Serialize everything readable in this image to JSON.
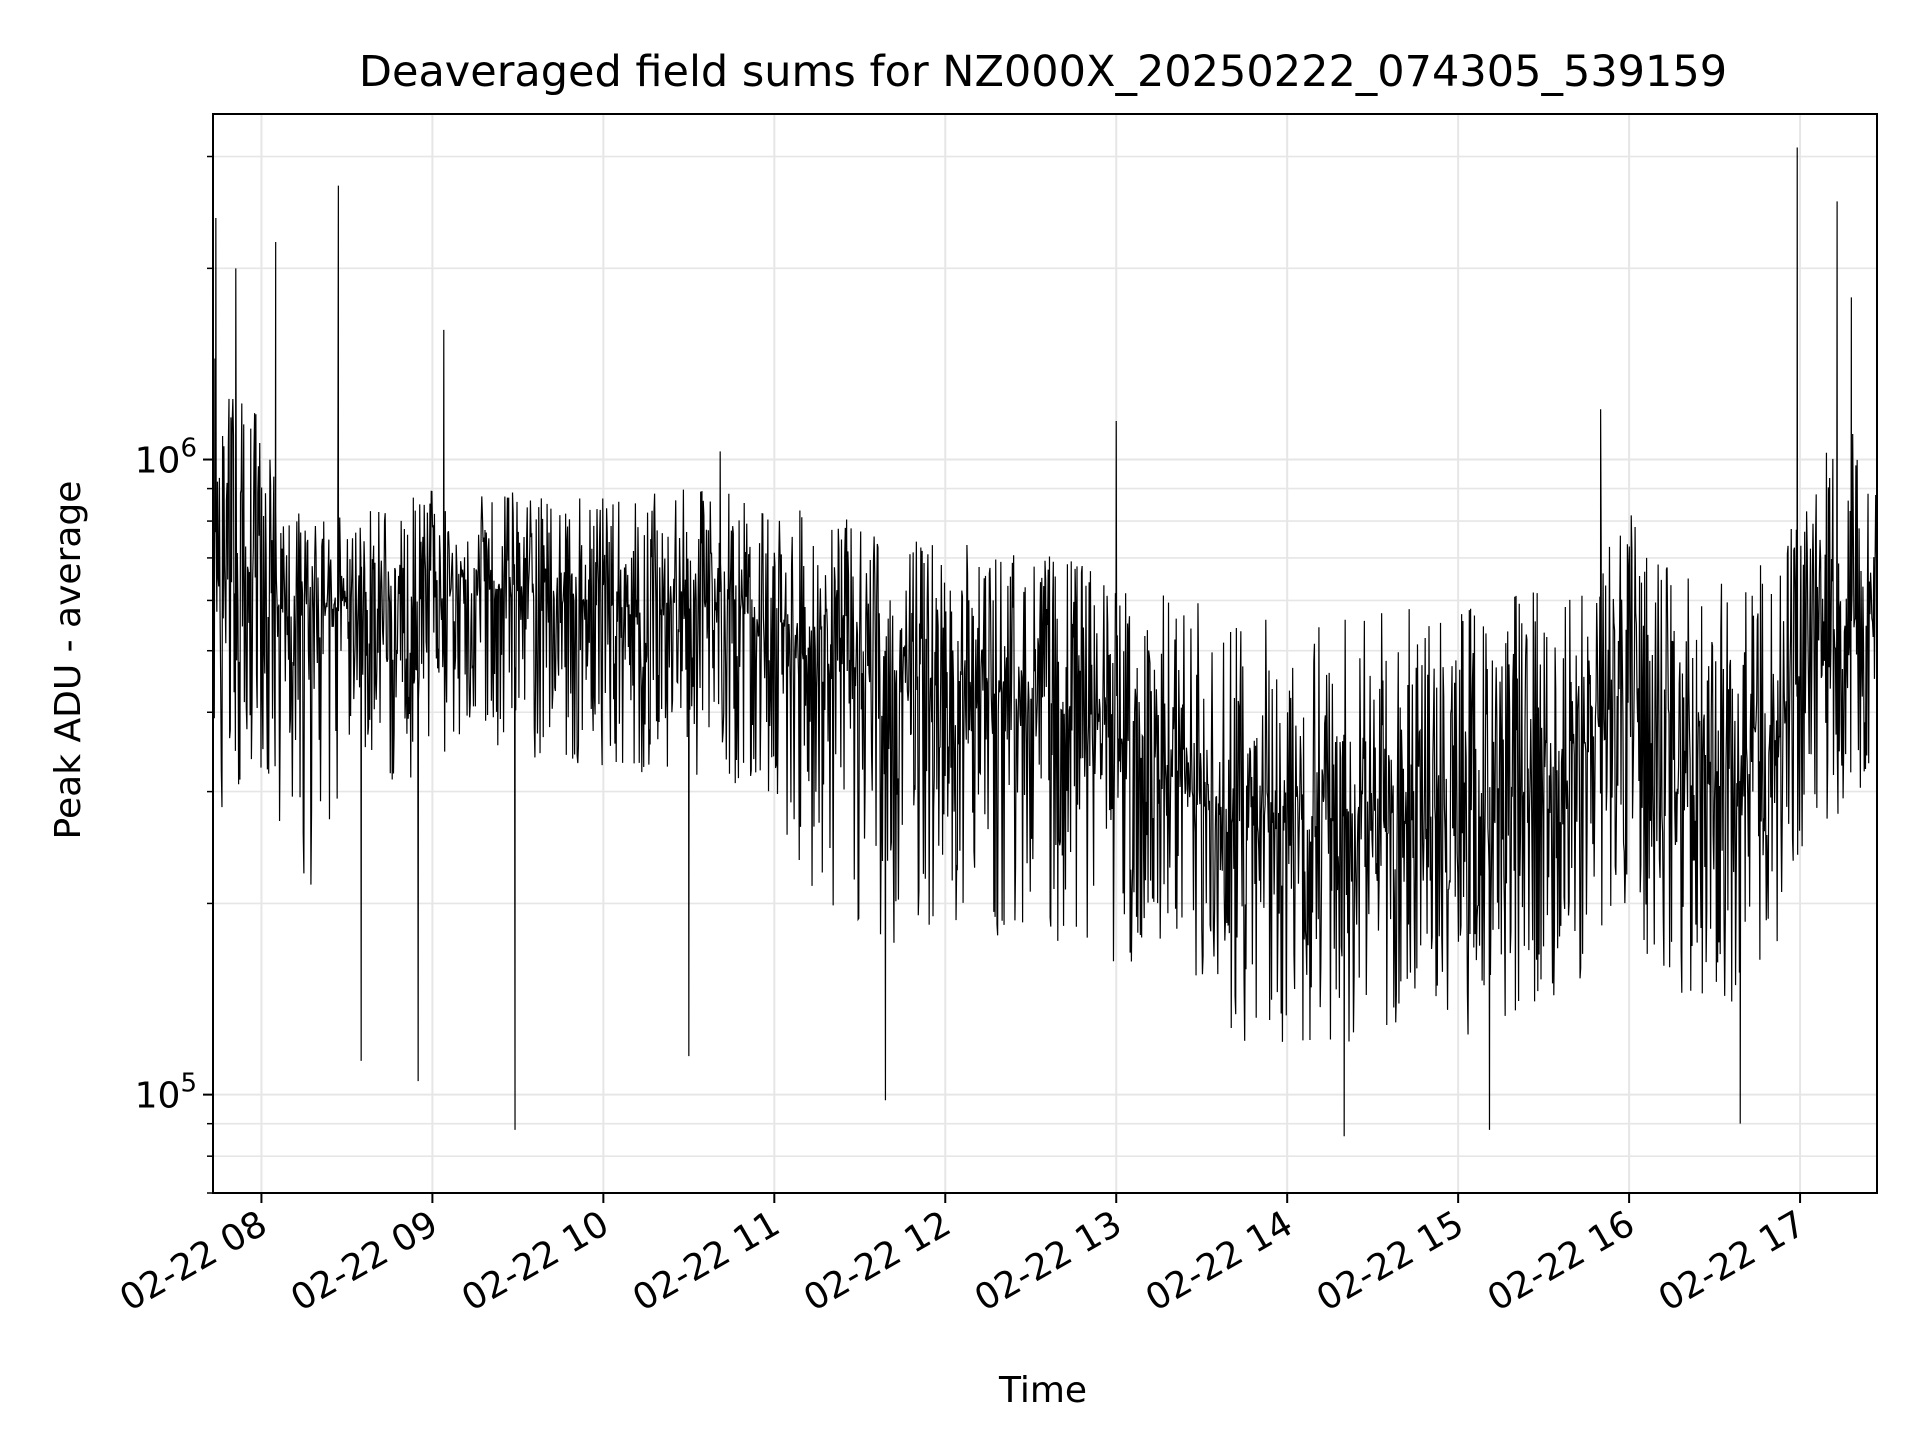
{
  "chart_data": {
    "type": "line",
    "title": "Deaveraged field sums for NZ000X_20250222_074305_539159",
    "xlabel": "Time",
    "ylabel": "Peak ADU - average",
    "yscale": "log",
    "xlim": [
      "2025-02-22 07:43",
      "2025-02-22 17:27"
    ],
    "ylim": [
      70000,
      3500000
    ],
    "grid": true,
    "line_color": "#000000",
    "grid_color": "#e6e6e6",
    "x_ticks": [
      {
        "value": "2025-02-22 08:00",
        "label": "02-22 08"
      },
      {
        "value": "2025-02-22 09:00",
        "label": "02-22 09"
      },
      {
        "value": "2025-02-22 10:00",
        "label": "02-22 10"
      },
      {
        "value": "2025-02-22 11:00",
        "label": "02-22 11"
      },
      {
        "value": "2025-02-22 12:00",
        "label": "02-22 12"
      },
      {
        "value": "2025-02-22 13:00",
        "label": "02-22 13"
      },
      {
        "value": "2025-02-22 14:00",
        "label": "02-22 14"
      },
      {
        "value": "2025-02-22 15:00",
        "label": "02-22 15"
      },
      {
        "value": "2025-02-22 16:00",
        "label": "02-22 16"
      },
      {
        "value": "2025-02-22 17:00",
        "label": "02-22 17"
      }
    ],
    "y_ticks": [
      {
        "value": 100000,
        "base": "10",
        "exp": "5"
      },
      {
        "value": 1000000,
        "base": "10",
        "exp": "6"
      }
    ],
    "series": [
      {
        "x": [
          "2025-02-22 07:43",
          "2025-02-22 07:53",
          "2025-02-22 08:03",
          "2025-02-22 08:10",
          "2025-02-22 08:20",
          "2025-02-22 08:30",
          "2025-02-22 08:45",
          "2025-02-22 09:00",
          "2025-02-22 09:15",
          "2025-02-22 09:30",
          "2025-02-22 09:45",
          "2025-02-22 10:00",
          "2025-02-22 10:15",
          "2025-02-22 10:30",
          "2025-02-22 10:45",
          "2025-02-22 11:00",
          "2025-02-22 11:15",
          "2025-02-22 11:30",
          "2025-02-22 11:45",
          "2025-02-22 12:00",
          "2025-02-22 12:15",
          "2025-02-22 12:30",
          "2025-02-22 12:45",
          "2025-02-22 13:00",
          "2025-02-22 13:15",
          "2025-02-22 13:30",
          "2025-02-22 13:45",
          "2025-02-22 14:00",
          "2025-02-22 14:15",
          "2025-02-22 14:30",
          "2025-02-22 14:45",
          "2025-02-22 15:00",
          "2025-02-22 15:15",
          "2025-02-22 15:30",
          "2025-02-22 15:45",
          "2025-02-22 15:55",
          "2025-02-22 16:10",
          "2025-02-22 16:25",
          "2025-02-22 16:40",
          "2025-02-22 16:55",
          "2025-02-22 17:05",
          "2025-02-22 17:15",
          "2025-02-22 17:27"
        ],
        "y": [
          600000,
          650000,
          600000,
          560000,
          580000,
          600000,
          590000,
          610000,
          630000,
          620000,
          600000,
          590000,
          580000,
          600000,
          590000,
          560000,
          500000,
          460000,
          440000,
          450000,
          430000,
          420000,
          400000,
          370000,
          330000,
          280000,
          270000,
          260000,
          270000,
          280000,
          270000,
          280000,
          300000,
          320000,
          350000,
          420000,
          340000,
          330000,
          310000,
          380000,
          460000,
          520000,
          560000
        ],
        "y_low": [
          260000,
          300000,
          280000,
          240000,
          200000,
          350000,
          300000,
          330000,
          360000,
          350000,
          320000,
          330000,
          310000,
          320000,
          310000,
          280000,
          200000,
          180000,
          170000,
          190000,
          170000,
          180000,
          170000,
          160000,
          150000,
          130000,
          120000,
          115000,
          120000,
          120000,
          125000,
          120000,
          130000,
          140000,
          150000,
          200000,
          150000,
          140000,
          140000,
          170000,
          230000,
          280000,
          300000
        ],
        "y_high": [
          1500000,
          1300000,
          1100000,
          850000,
          800000,
          850000,
          850000,
          900000,
          880000,
          900000,
          880000,
          870000,
          880000,
          900000,
          900000,
          850000,
          820000,
          800000,
          760000,
          750000,
          730000,
          720000,
          700000,
          650000,
          620000,
          600000,
          580000,
          570000,
          580000,
          590000,
          580000,
          600000,
          620000,
          650000,
          700000,
          900000,
          700000,
          650000,
          640000,
          760000,
          1000000,
          1100000,
          1200000
        ],
        "spikes": [
          {
            "x": "2025-02-22 07:44",
            "y": 2400000
          },
          {
            "x": "2025-02-22 07:51",
            "y": 2000000
          },
          {
            "x": "2025-02-22 08:05",
            "y": 2200000
          },
          {
            "x": "2025-02-22 08:27",
            "y": 2700000
          },
          {
            "x": "2025-02-22 08:35",
            "y": 113000
          },
          {
            "x": "2025-02-22 08:55",
            "y": 105000
          },
          {
            "x": "2025-02-22 09:04",
            "y": 1600000
          },
          {
            "x": "2025-02-22 09:29",
            "y": 88000
          },
          {
            "x": "2025-02-22 10:30",
            "y": 115000
          },
          {
            "x": "2025-02-22 10:41",
            "y": 1030000
          },
          {
            "x": "2025-02-22 11:39",
            "y": 98000
          },
          {
            "x": "2025-02-22 13:00",
            "y": 1150000
          },
          {
            "x": "2025-02-22 14:20",
            "y": 86000
          },
          {
            "x": "2025-02-22 15:11",
            "y": 88000
          },
          {
            "x": "2025-02-22 15:50",
            "y": 1200000
          },
          {
            "x": "2025-02-22 16:39",
            "y": 90000
          },
          {
            "x": "2025-02-22 16:59",
            "y": 3100000
          },
          {
            "x": "2025-02-22 17:13",
            "y": 2550000
          },
          {
            "x": "2025-02-22 17:18",
            "y": 1800000
          }
        ]
      }
    ]
  }
}
